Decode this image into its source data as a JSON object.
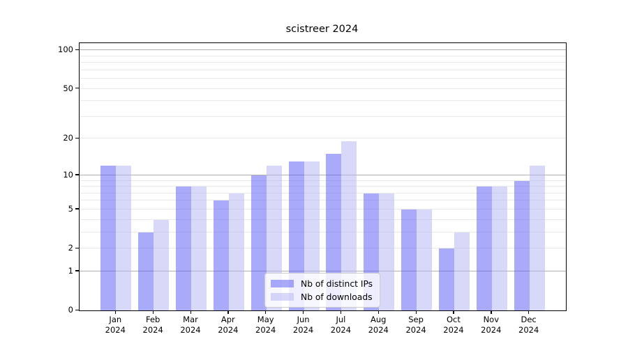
{
  "title": "scistreer 2024",
  "legend": {
    "items": [
      {
        "label": "Nb of distinct IPs",
        "series_key": "ips"
      },
      {
        "label": "Nb of downloads",
        "series_key": "downloads"
      }
    ]
  },
  "colors": {
    "ips": "rgba(85,85,245,0.5)",
    "ips_flat": "#aaaafa",
    "downloads": "rgba(178,178,243,0.5)",
    "downloads_flat": "#d8d8f9",
    "grid_major": "#b0b0b0",
    "grid_minor": "#e9e9e9",
    "spine": "#000000"
  },
  "chart_data": {
    "type": "bar",
    "title": "scistreer 2024",
    "xlabel": "",
    "ylabel": "",
    "categories": [
      "Jan 2024",
      "Feb 2024",
      "Mar 2024",
      "Apr 2024",
      "May 2024",
      "Jun 2024",
      "Jul 2024",
      "Aug 2024",
      "Sep 2024",
      "Oct 2024",
      "Nov 2024",
      "Dec 2024"
    ],
    "series": [
      {
        "name": "Nb of distinct IPs",
        "values": [
          12,
          3,
          8,
          6,
          10,
          13,
          15,
          7,
          5,
          2,
          8,
          9
        ]
      },
      {
        "name": "Nb of downloads",
        "values": [
          12,
          4,
          8,
          7,
          12,
          13,
          19,
          7,
          5,
          3,
          8,
          12
        ]
      }
    ],
    "yscale": "log1p",
    "ylim": [
      0,
      113.6
    ],
    "yticks": [
      0,
      1,
      2,
      5,
      10,
      20,
      50,
      100
    ],
    "ytick_labels": [
      "0",
      "1",
      "2",
      "5",
      "10",
      "20",
      "50",
      "100"
    ],
    "grid": {
      "major": [
        1,
        10,
        100
      ],
      "minor": [
        2,
        3,
        4,
        5,
        6,
        7,
        8,
        9,
        20,
        30,
        40,
        50,
        60,
        70,
        80,
        90
      ]
    },
    "legend_position": "lower center"
  }
}
